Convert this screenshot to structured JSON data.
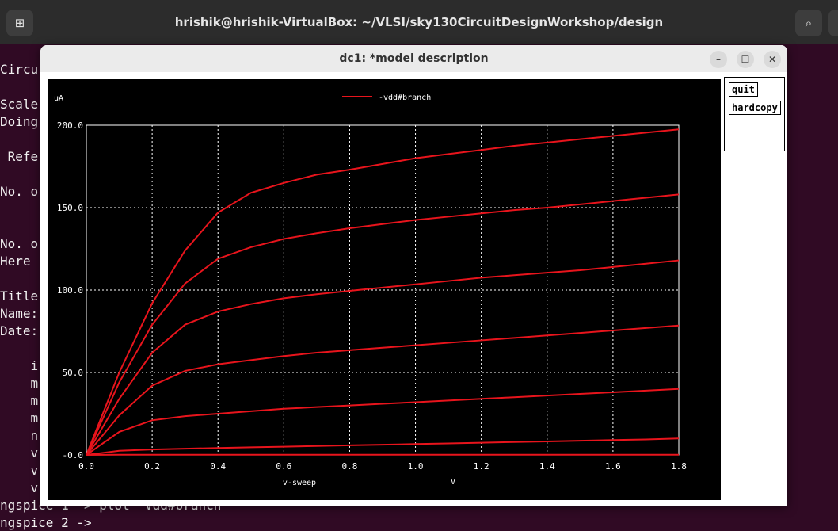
{
  "terminal": {
    "title": "hrishik@hrishik-VirtualBox: ~/VLSI/sky130CircuitDesignWorkshop/design",
    "new_tab_icon": "new-tab-icon",
    "search_icon": "search-icon",
    "lines": [
      {
        "text": "Circu",
        "top": 0
      },
      {
        "text": "Scale",
        "top": 1
      },
      {
        "text": "Doing",
        "top": 2
      },
      {
        "text": " Refe",
        "top": 3
      },
      {
        "text": "No. o",
        "top": 4
      },
      {
        "text": "No. o",
        "top": 5
      },
      {
        "text": "Here",
        "top": 6
      },
      {
        "text": "Title",
        "top": 7
      },
      {
        "text": "Name:",
        "top": 8
      },
      {
        "text": "Date:",
        "top": 9
      },
      {
        "text": "    i",
        "top": 10
      },
      {
        "text": "    m",
        "top": 11
      },
      {
        "text": "    m",
        "top": 12
      },
      {
        "text": "    m",
        "top": 13
      },
      {
        "text": "    n",
        "top": 14
      },
      {
        "text": "    v",
        "top": 15
      },
      {
        "text": "    v",
        "top": 16
      },
      {
        "text": "    v",
        "top": 17
      },
      {
        "text": "ngspice 1 -> plot -vdd#branch",
        "top": 18
      },
      {
        "text": "ngspice 2 ->",
        "top": 19
      }
    ]
  },
  "plot_window": {
    "title": "dc1: *model description",
    "minimize_icon": "minimize-icon",
    "maximize_icon": "maximize-icon",
    "close_icon": "close-icon",
    "buttons": {
      "quit": "quit",
      "hardcopy": "hardcopy"
    }
  },
  "chart_data": {
    "type": "line",
    "ylabel": "uA",
    "xlabel": "v-sweep",
    "xunit": "V",
    "legend": "-vdd#branch",
    "legend_position": "top-center",
    "grid": true,
    "background": "#000000",
    "line_color": "#e8141c",
    "grid_color": "#ffffff",
    "xlim": [
      0.0,
      1.8
    ],
    "ylim": [
      -0.0,
      200.0
    ],
    "x_ticks": [
      "0.0",
      "0.2",
      "0.4",
      "0.6",
      "0.8",
      "1.0",
      "1.2",
      "1.4",
      "1.6",
      "1.8"
    ],
    "y_ticks": [
      "-0.0",
      "50.0",
      "100.0",
      "150.0",
      "200.0"
    ],
    "x": [
      0.0,
      0.1,
      0.2,
      0.3,
      0.4,
      0.5,
      0.6,
      0.7,
      0.8,
      0.9,
      1.0,
      1.1,
      1.2,
      1.3,
      1.4,
      1.5,
      1.6,
      1.7,
      1.8
    ],
    "series": [
      {
        "values": [
          0,
          0.1,
          0.1,
          0.1,
          0.1,
          0.1,
          0.1,
          0.1,
          0.1,
          0.1,
          0.1,
          0.1,
          0.1,
          0.1,
          0.1,
          0.1,
          0.1,
          0.1,
          0.1
        ]
      },
      {
        "values": [
          0,
          2.5,
          3.3,
          3.8,
          4.2,
          4.6,
          5.0,
          5.4,
          5.8,
          6.2,
          6.6,
          7.0,
          7.4,
          7.8,
          8.2,
          8.6,
          9.0,
          9.4,
          10.0
        ]
      },
      {
        "values": [
          0,
          14,
          21,
          23.5,
          25,
          26.5,
          28,
          29,
          30,
          31,
          32,
          33,
          34,
          35,
          36,
          37,
          38,
          39,
          40
        ]
      },
      {
        "values": [
          0,
          24,
          42,
          51,
          55,
          57.5,
          60,
          62,
          63.5,
          65,
          66.5,
          68,
          69.5,
          71,
          72.5,
          74,
          75.5,
          77,
          78.5
        ]
      },
      {
        "values": [
          0,
          34,
          62,
          79,
          87,
          91.5,
          95,
          97.5,
          99.5,
          101.5,
          103.5,
          105.5,
          107.5,
          109,
          110.5,
          112,
          114,
          116,
          118
        ]
      },
      {
        "values": [
          0,
          44,
          79,
          104,
          119,
          126,
          131,
          134.5,
          137.5,
          140,
          142.5,
          144.5,
          146.5,
          148.5,
          150,
          152,
          154,
          156,
          158
        ]
      },
      {
        "values": [
          0,
          50,
          92,
          124,
          147,
          159,
          165,
          170,
          173,
          176.5,
          180,
          182.5,
          185,
          187.5,
          189.5,
          191.5,
          193.5,
          195.5,
          197.5
        ]
      }
    ]
  }
}
